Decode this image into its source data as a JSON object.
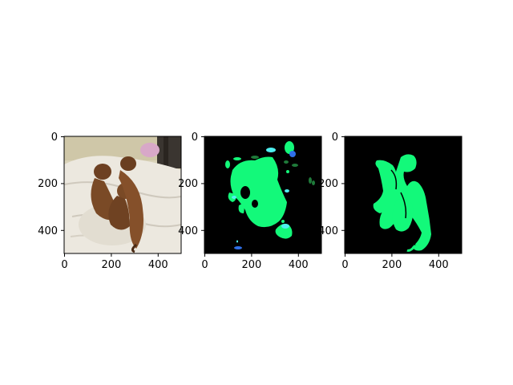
{
  "figure": {
    "background": "#ffffff",
    "layout": "1 row × 3 panels, each an image shown on pixel axes"
  },
  "chart_data": [
    {
      "type": "image",
      "panel": "input-photo",
      "content": "photo of three dachshund dogs lying on a white blanket on a bed",
      "xlim": [
        0,
        500
      ],
      "ylim": [
        500,
        0
      ],
      "x_ticks": [
        "0",
        "200",
        "400"
      ],
      "y_ticks": [
        "0",
        "200",
        "400"
      ],
      "xlabel": "",
      "ylabel": "",
      "colors": {
        "blanket": "#e8e2d6",
        "dog": "#7a4a26",
        "wall": "#d9d2b8"
      }
    },
    {
      "type": "image",
      "panel": "predicted-mask",
      "content": "noisy segmentation prediction on black background",
      "xlim": [
        0,
        500
      ],
      "ylim": [
        500,
        0
      ],
      "x_ticks": [
        "0",
        "200",
        "400"
      ],
      "y_ticks": [
        "0",
        "200",
        "400"
      ],
      "xlabel": "",
      "ylabel": "",
      "colors": {
        "background": "#000000",
        "dog_class": "#13f97a",
        "cyan_class": "#4ef0f0",
        "blue_class": "#2f6fe8",
        "dark_green_class": "#1f7a3a"
      }
    },
    {
      "type": "image",
      "panel": "ground-truth-mask",
      "content": "ground-truth segmentation of the three dogs on black background",
      "xlim": [
        0,
        500
      ],
      "ylim": [
        500,
        0
      ],
      "x_ticks": [
        "0",
        "200",
        "400"
      ],
      "y_ticks": [
        "0",
        "200",
        "400"
      ],
      "xlabel": "",
      "ylabel": "",
      "colors": {
        "background": "#000000",
        "dog_class": "#13f97a"
      }
    }
  ]
}
